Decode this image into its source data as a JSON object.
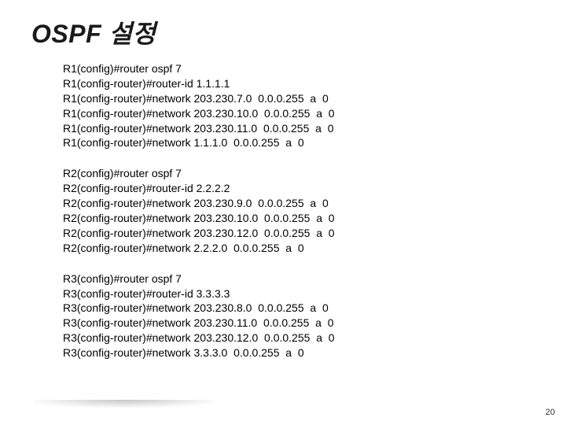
{
  "title": "OSPF 설정",
  "page_number": "20",
  "text_color": "#000000",
  "title_color": "#1a1a1a",
  "background_color": "#ffffff",
  "blocks": [
    {
      "lines": [
        "R1(config)#router ospf 7",
        "R1(config-router)#router-id 1.1.1.1",
        "R1(config-router)#network 203.230.7.0  0.0.0.255  a  0",
        "R1(config-router)#network 203.230.10.0  0.0.0.255  a  0",
        "R1(config-router)#network 203.230.11.0  0.0.0.255  a  0",
        "R1(config-router)#network 1.1.1.0  0.0.0.255  a  0"
      ]
    },
    {
      "lines": [
        "R2(config)#router ospf 7",
        "R2(config-router)#router-id 2.2.2.2",
        "R2(config-router)#network 203.230.9.0  0.0.0.255  a  0",
        "R2(config-router)#network 203.230.10.0  0.0.0.255  a  0",
        "R2(config-router)#network 203.230.12.0  0.0.0.255  a  0",
        "R2(config-router)#network 2.2.2.0  0.0.0.255  a  0"
      ]
    },
    {
      "lines": [
        "R3(config)#router ospf 7",
        "R3(config-router)#router-id 3.3.3.3",
        "R3(config-router)#network 203.230.8.0  0.0.0.255  a  0",
        "R3(config-router)#network 203.230.11.0  0.0.0.255  a  0",
        "R3(config-router)#network 203.230.12.0  0.0.0.255  a  0",
        "R3(config-router)#network 3.3.3.0  0.0.0.255  a  0"
      ]
    }
  ]
}
